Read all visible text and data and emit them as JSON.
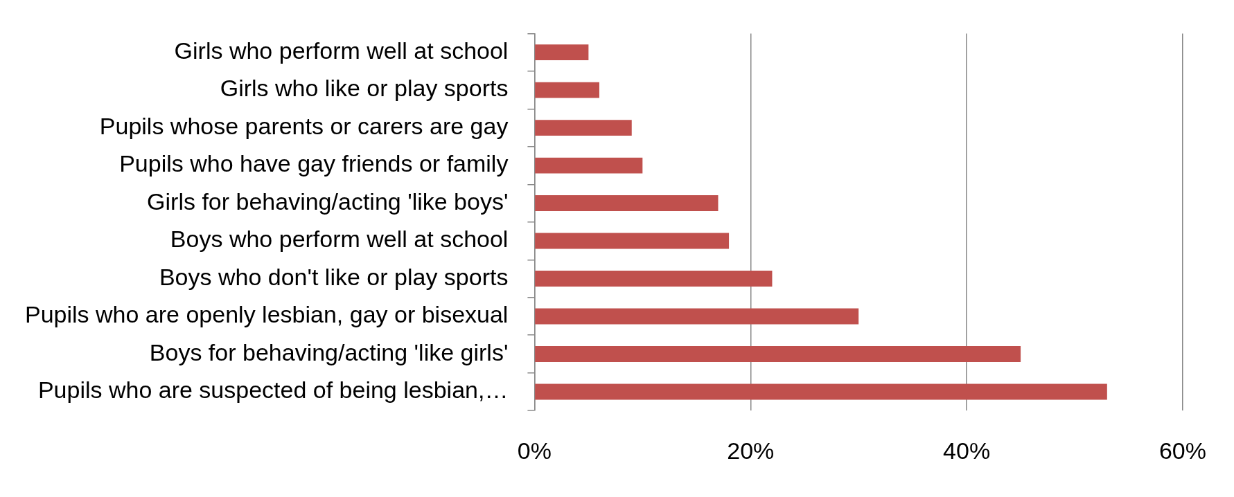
{
  "chart_data": {
    "type": "bar",
    "orientation": "horizontal",
    "categories": [
      "Girls who perform well at school",
      "Girls who like or play sports",
      "Pupils whose parents or carers are gay",
      "Pupils who have gay friends or family",
      "Girls for behaving/acting 'like boys'",
      "Boys who perform well at school",
      "Boys who don't like or play sports",
      "Pupils who are openly lesbian, gay or bisexual",
      "Boys for behaving/acting 'like girls'",
      "Pupils who are suspected of being lesbian,…"
    ],
    "values": [
      5,
      6,
      9,
      10,
      17,
      18,
      22,
      30,
      45,
      53
    ],
    "color": "#c0504d",
    "xlim": [
      0,
      60
    ],
    "xticks": [
      {
        "value": 0,
        "label": "0%"
      },
      {
        "value": 20,
        "label": "20%"
      },
      {
        "value": 40,
        "label": "40%"
      },
      {
        "value": 60,
        "label": "60%"
      }
    ],
    "grid": "x",
    "legend": false
  }
}
